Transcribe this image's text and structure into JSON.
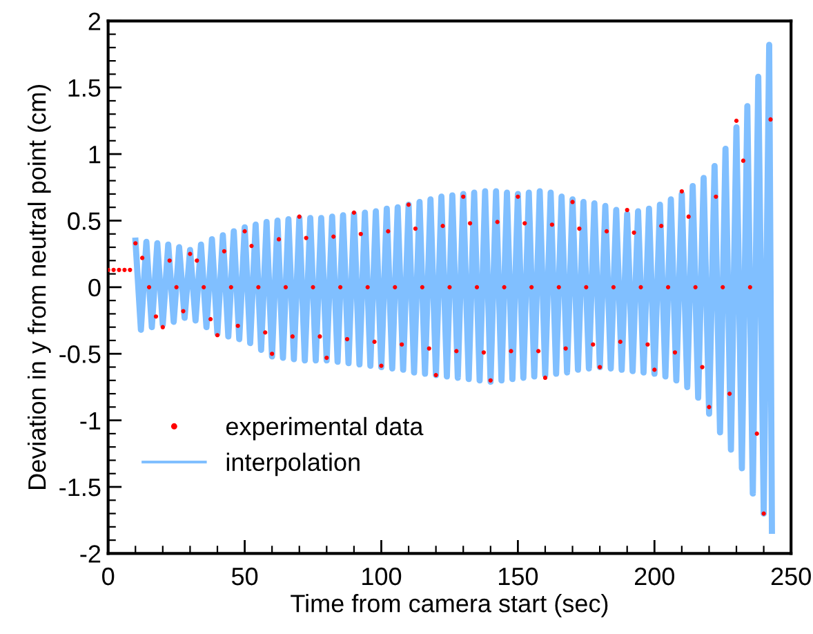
{
  "chart_data": {
    "type": "line",
    "xlabel": "Time from camera start (sec)",
    "ylabel": "Deviation in y from neutral point (cm)",
    "xlim": [
      0,
      250
    ],
    "xticks": [
      0,
      50,
      100,
      150,
      200,
      250
    ],
    "ylim": [
      -2,
      2
    ],
    "yticks": [
      -2,
      -1.5,
      -1,
      -0.5,
      0,
      0.5,
      1,
      1.5,
      2
    ],
    "grid": false,
    "legend": "bottom left",
    "series": [
      {
        "name": "experimental data",
        "type": "scatter",
        "marker": "circle",
        "color": "#ff0000",
        "x": [
          0,
          2,
          4,
          6,
          8,
          10,
          12.5,
          15,
          17.5,
          20,
          22.5,
          25,
          27.5,
          30,
          32.5,
          35,
          37.5,
          40,
          42.5,
          45,
          47.5,
          50,
          52.5,
          55,
          57.5,
          60,
          62.5,
          65,
          67.5,
          70,
          72.5,
          75,
          77.5,
          80,
          82.5,
          85,
          87.5,
          90,
          92.5,
          95,
          97.5,
          100,
          102.5,
          105,
          107.5,
          110,
          112.5,
          115,
          117.5,
          120,
          122.5,
          125,
          127.5,
          130,
          132.5,
          135,
          137.5,
          140,
          142.5,
          145,
          147.5,
          150,
          152.5,
          155,
          157.5,
          160,
          162.5,
          165,
          167.5,
          170,
          172.5,
          175,
          177.5,
          180,
          182.5,
          185,
          187.5,
          190,
          192.5,
          195,
          197.5,
          200,
          202.5,
          205,
          207.5,
          210,
          212.5,
          215,
          217.5,
          220,
          222.5,
          225,
          227.5,
          230,
          232.5,
          235,
          237.5,
          240,
          242.5
        ],
        "values": [
          0.13,
          0.13,
          0.13,
          0.13,
          0.13,
          0.33,
          0.22,
          0,
          -0.22,
          -0.3,
          0.2,
          0,
          -0.18,
          0.25,
          0.2,
          0,
          -0.24,
          -0.36,
          0.27,
          0,
          -0.29,
          0.42,
          0.31,
          0,
          -0.34,
          -0.5,
          0.36,
          0,
          -0.37,
          0.53,
          0.37,
          0,
          -0.37,
          -0.53,
          0.38,
          0,
          -0.39,
          0.56,
          0.4,
          0,
          -0.41,
          -0.59,
          0.42,
          0,
          -0.43,
          0.62,
          0.44,
          0,
          -0.46,
          -0.66,
          0.46,
          0,
          -0.48,
          0.68,
          0.48,
          0,
          -0.49,
          -0.7,
          0.49,
          0,
          -0.48,
          0.68,
          0.48,
          0,
          -0.48,
          -0.68,
          0.47,
          0,
          -0.46,
          0.64,
          0.44,
          0,
          -0.43,
          -0.6,
          0.42,
          0,
          -0.41,
          0.58,
          0.41,
          0,
          -0.43,
          -0.62,
          0.46,
          0,
          -0.49,
          0.72,
          0.53,
          0,
          -0.6,
          -0.9,
          0.68,
          0,
          -0.8,
          1.25,
          0.95,
          0,
          -1.1,
          -1.7,
          1.26
        ]
      },
      {
        "name": "interpolation",
        "marker": "none",
        "line_style": "solid",
        "color": "#80bfff",
        "x": [
          10,
          12,
          14,
          16,
          18,
          20,
          22,
          24,
          26,
          28,
          30,
          32,
          34,
          36,
          38,
          40,
          42,
          44,
          46,
          48,
          50,
          52,
          54,
          56,
          58,
          60,
          62,
          64,
          66,
          68,
          70,
          72,
          74,
          76,
          78,
          80,
          82,
          84,
          86,
          88,
          90,
          92,
          94,
          96,
          98,
          100,
          102,
          104,
          106,
          108,
          110,
          112,
          114,
          116,
          118,
          120,
          122,
          124,
          126,
          128,
          130,
          132,
          134,
          136,
          138,
          140,
          142,
          144,
          146,
          148,
          150,
          152,
          154,
          156,
          158,
          160,
          162,
          164,
          166,
          168,
          170,
          172,
          174,
          176,
          178,
          180,
          182,
          184,
          186,
          188,
          190,
          192,
          194,
          196,
          198,
          200,
          202,
          204,
          206,
          208,
          210,
          212,
          214,
          216,
          218,
          220,
          222,
          224,
          226,
          228,
          230,
          232,
          234,
          236,
          238,
          240,
          242,
          243
        ],
        "values": [
          0.35,
          -0.32,
          0.34,
          -0.3,
          0.33,
          -0.28,
          0.32,
          -0.26,
          0.3,
          -0.23,
          0.28,
          -0.25,
          0.32,
          -0.3,
          0.36,
          -0.35,
          0.39,
          -0.37,
          0.42,
          -0.39,
          0.45,
          -0.42,
          0.47,
          -0.47,
          0.49,
          -0.52,
          0.5,
          -0.53,
          0.51,
          -0.54,
          0.52,
          -0.55,
          0.52,
          -0.55,
          0.52,
          -0.55,
          0.53,
          -0.56,
          0.54,
          -0.57,
          0.55,
          -0.58,
          0.56,
          -0.59,
          0.57,
          -0.6,
          0.59,
          -0.61,
          0.6,
          -0.62,
          0.62,
          -0.64,
          0.64,
          -0.65,
          0.66,
          -0.66,
          0.68,
          -0.67,
          0.69,
          -0.68,
          0.7,
          -0.69,
          0.71,
          -0.7,
          0.72,
          -0.71,
          0.72,
          -0.7,
          0.71,
          -0.69,
          0.7,
          -0.68,
          0.71,
          -0.67,
          0.72,
          -0.66,
          0.71,
          -0.65,
          0.68,
          -0.64,
          0.66,
          -0.62,
          0.64,
          -0.61,
          0.63,
          -0.6,
          0.61,
          -0.61,
          0.58,
          -0.62,
          0.55,
          -0.63,
          0.57,
          -0.64,
          0.59,
          -0.65,
          0.62,
          -0.67,
          0.66,
          -0.7,
          0.7,
          -0.75,
          0.76,
          -0.83,
          0.82,
          -0.95,
          0.91,
          -1.09,
          1.04,
          -1.22,
          1.2,
          -1.36,
          1.36,
          -1.55,
          1.58,
          -1.7,
          1.82,
          -1.83
        ]
      }
    ]
  }
}
